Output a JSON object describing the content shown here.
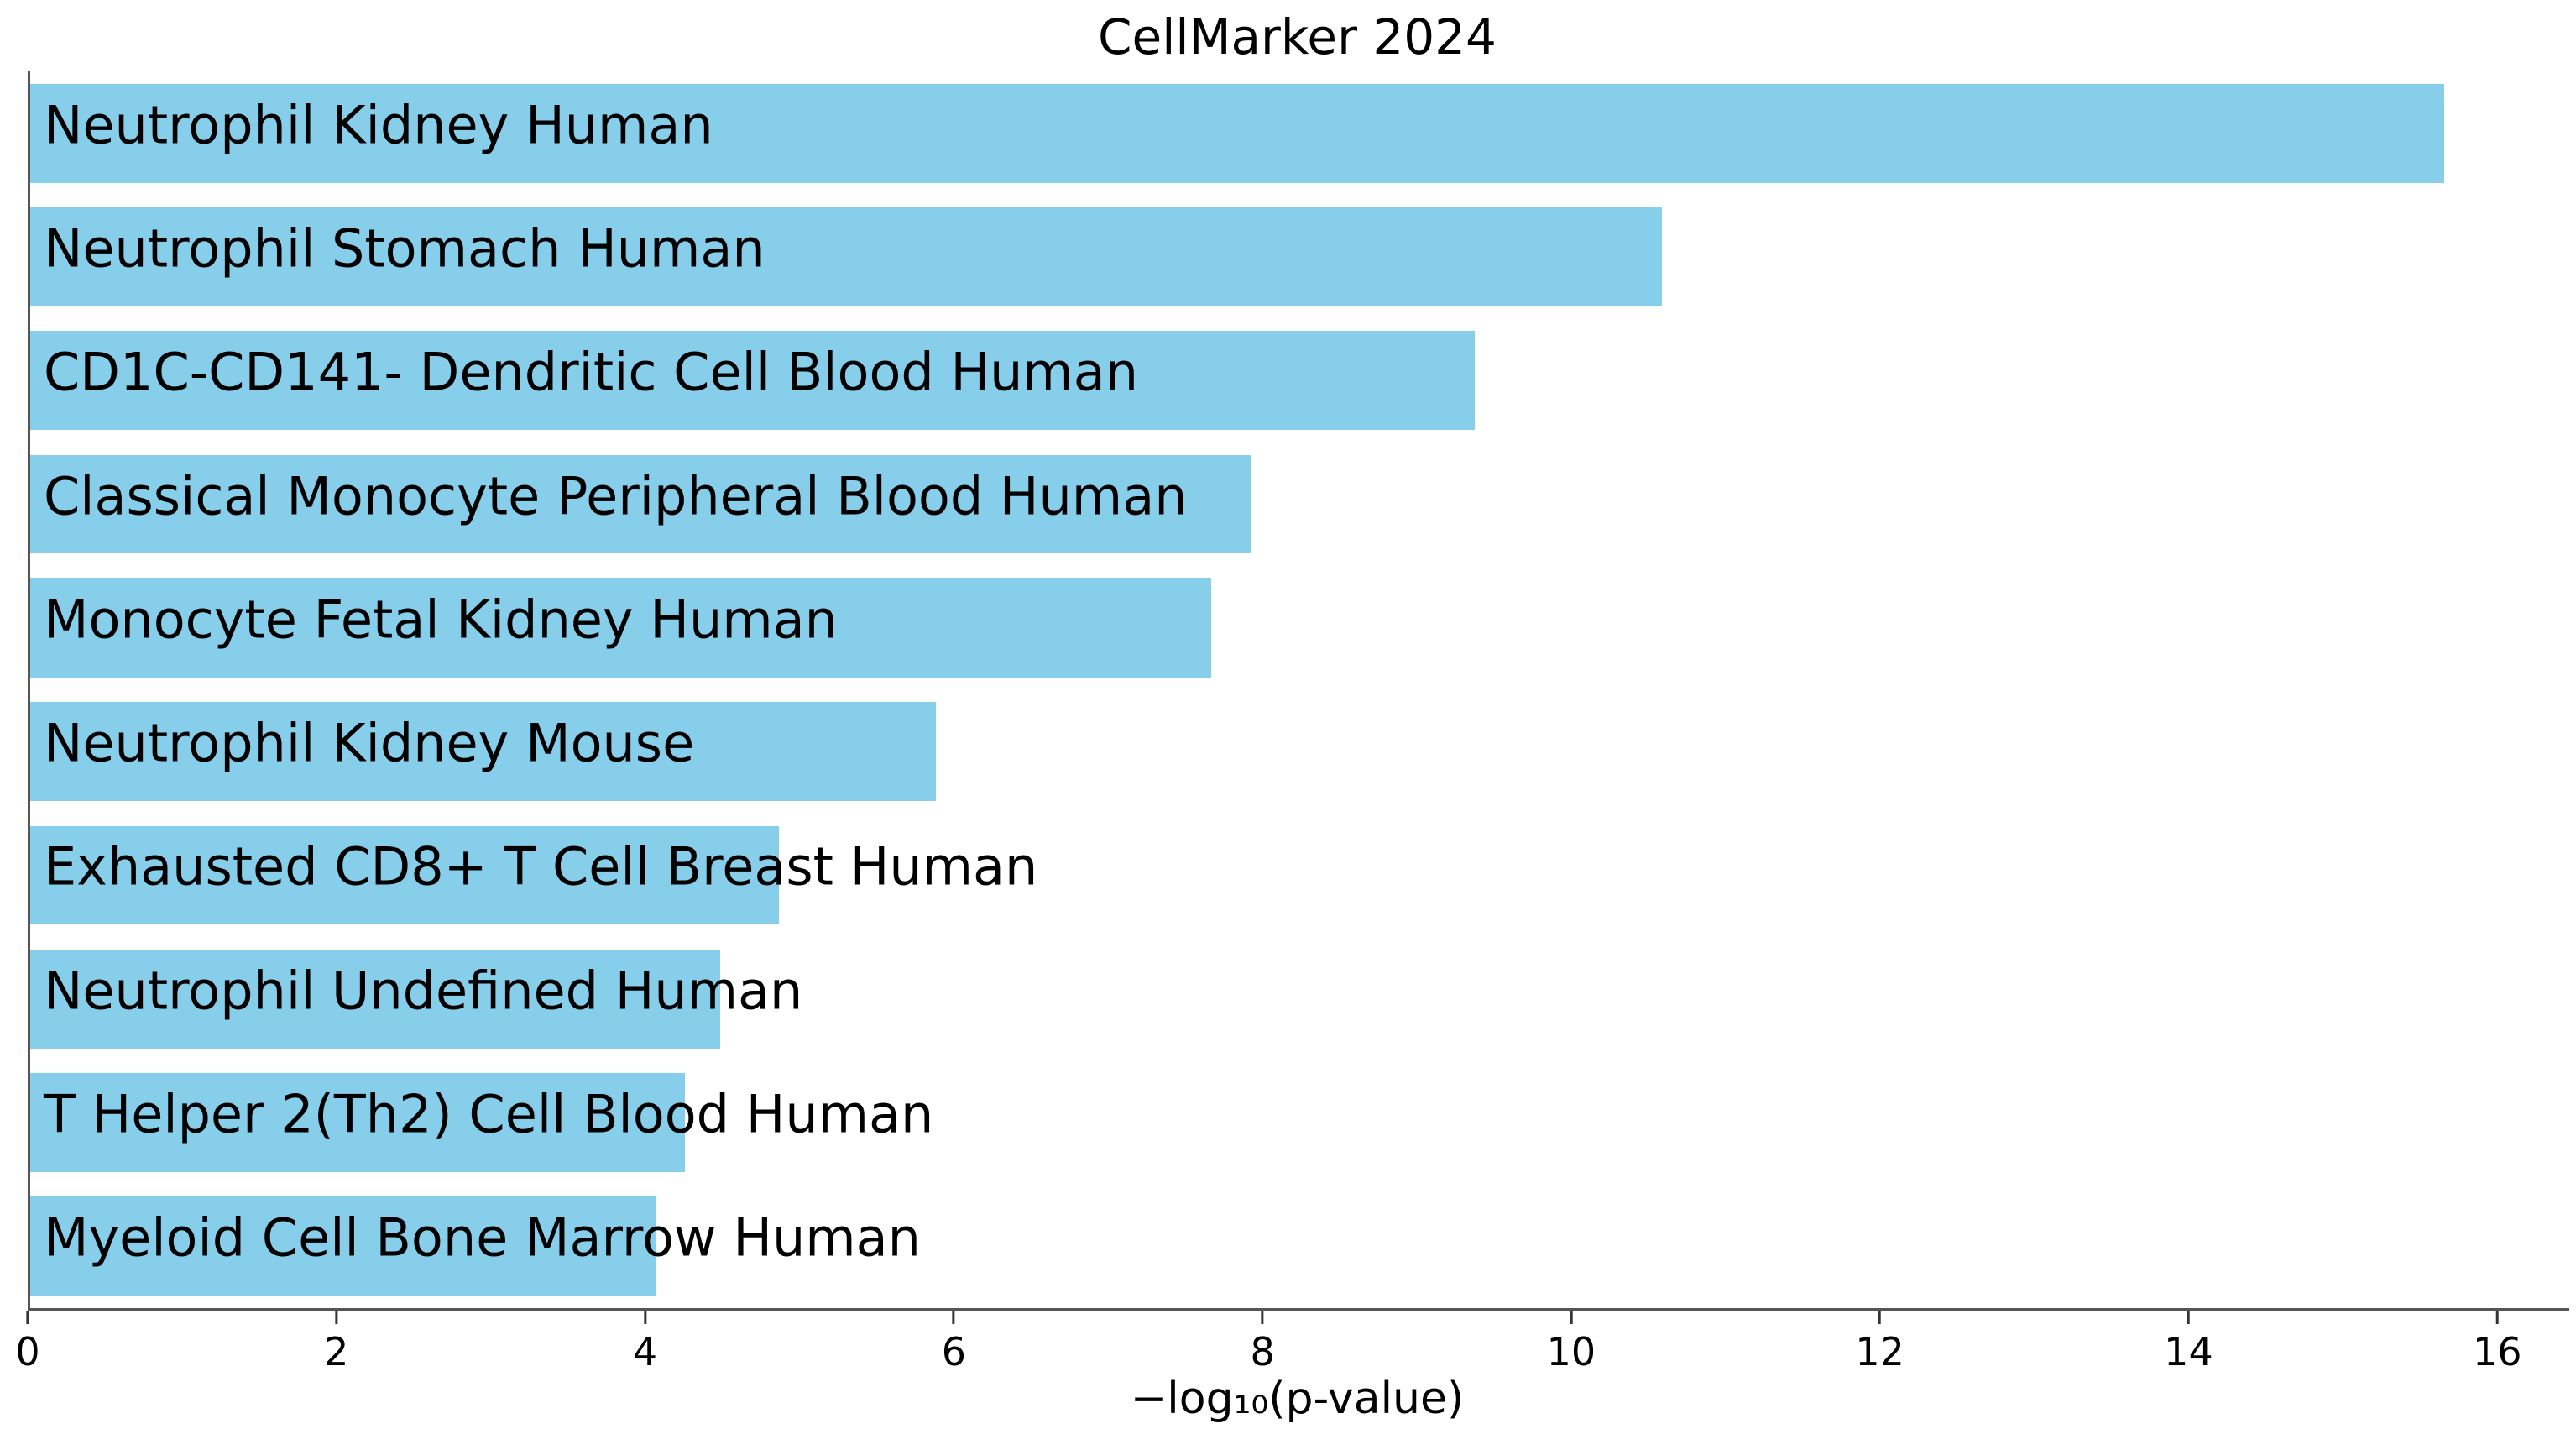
{
  "chart_data": {
    "type": "bar",
    "orientation": "horizontal",
    "title": "CellMarker 2024",
    "xlabel": "−log₁₀(p-value)",
    "ylabel": "",
    "categories": [
      "Neutrophil Kidney Human",
      "Neutrophil Stomach Human",
      "CD1C-CD141- Dendritic Cell Blood Human",
      "Classical Monocyte Peripheral Blood Human",
      "Monocyte Fetal Kidney Human",
      "Neutrophil Kidney Mouse",
      "Exhausted CD8+ T Cell Breast Human",
      "Neutrophil Undefined Human",
      "T Helper 2(Th2) Cell Blood Human",
      "Myeloid Cell Bone Marrow Human"
    ],
    "values": [
      15.64,
      10.57,
      9.36,
      7.91,
      7.65,
      5.87,
      4.85,
      4.47,
      4.24,
      4.05
    ],
    "xticks": [
      0,
      2,
      4,
      6,
      8,
      10,
      12,
      14,
      16
    ],
    "xlim": [
      0,
      16.45
    ],
    "grid": false,
    "legend_position": "none",
    "colors": {
      "bar_fill": "#87CEEB",
      "label_text": "#000000",
      "spine": "#555555",
      "tick": "#333333"
    }
  }
}
